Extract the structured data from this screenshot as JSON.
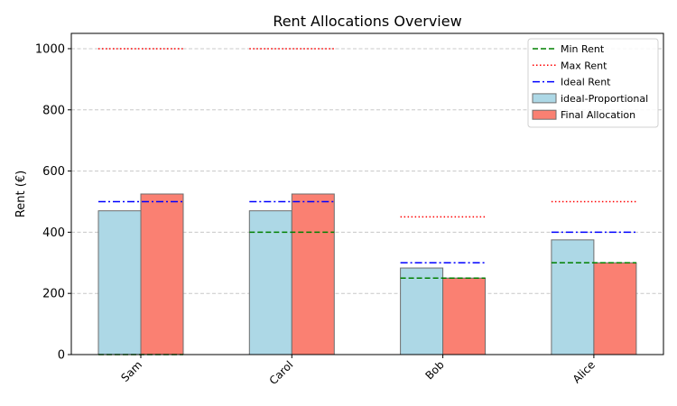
{
  "chart_data": {
    "type": "bar",
    "title": "Rent Allocations Overview",
    "xlabel": "",
    "ylabel": "Rent (€)",
    "ylim": [
      0,
      1050
    ],
    "yticks": [
      0,
      200,
      400,
      600,
      800,
      1000
    ],
    "grid": "y-dashed",
    "legend_position": "top-right",
    "categories": [
      "Sam",
      "Carol",
      "Bob",
      "Alice"
    ],
    "series": [
      {
        "name": "ideal-Proportional",
        "kind": "bar",
        "color": "#add8e6",
        "values": [
          470,
          470,
          283,
          375
        ]
      },
      {
        "name": "Final Allocation",
        "kind": "bar",
        "color": "#fa8072",
        "values": [
          525,
          525,
          250,
          300
        ]
      }
    ],
    "lines": [
      {
        "name": "Min Rent",
        "style": "dashed",
        "color": "#008000",
        "values": [
          0,
          400,
          250,
          300
        ]
      },
      {
        "name": "Max Rent",
        "style": "dotted",
        "color": "#ff0000",
        "values": [
          1000,
          1000,
          450,
          500
        ]
      },
      {
        "name": "Ideal Rent",
        "style": "dashdot",
        "color": "#0000ff",
        "values": [
          500,
          500,
          300,
          400
        ]
      }
    ],
    "legend": [
      "Min Rent",
      "Max Rent",
      "Ideal Rent",
      "ideal-Proportional",
      "Final Allocation"
    ]
  }
}
